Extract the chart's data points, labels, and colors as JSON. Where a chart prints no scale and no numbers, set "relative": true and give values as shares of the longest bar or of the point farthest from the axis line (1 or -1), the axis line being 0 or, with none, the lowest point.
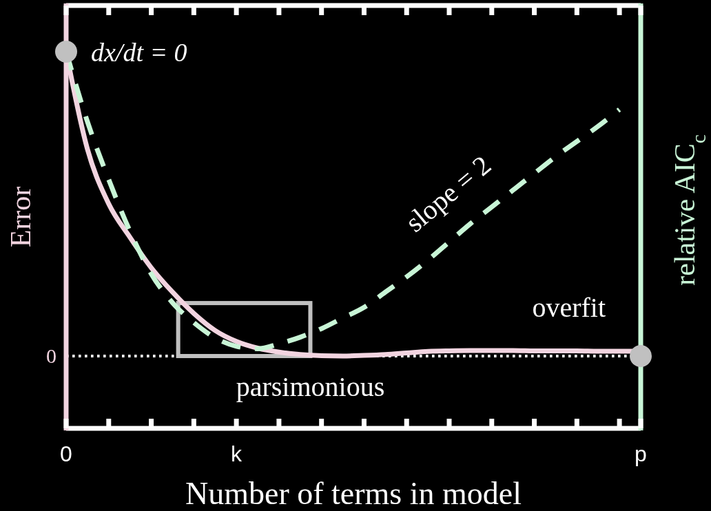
{
  "chart_data": {
    "type": "line",
    "relative": true,
    "xlabel": "Number of terms in model",
    "ylabel": "Error",
    "y2label": "relative AIC$_{c}$",
    "categories": [
      "0",
      null,
      null,
      null,
      null,
      null,
      null,
      null,
      "k",
      null,
      null,
      null,
      null,
      null,
      null,
      null,
      null,
      null,
      null,
      null,
      null,
      null,
      null,
      null,
      null,
      null,
      null,
      "p"
    ],
    "series": [
      {
        "color": "#f2d4e0",
        "line_style": "solid",
        "values": [
          1,
          0.68,
          0.5,
          0.39,
          0.29,
          0.21,
          0.14,
          0.084,
          0.048,
          0.026,
          0.013,
          0.005,
          0.001,
          0,
          0.002,
          0.005,
          0.01,
          0.015,
          0.017,
          0.018,
          0.018,
          0.018,
          0.017,
          0.017,
          0.017,
          0.016,
          0.016,
          0.016
        ]
      },
      {
        "color": "#c8f5d6",
        "line_style": "dashed",
        "axis": "y2",
        "values": [
          1,
          0.77,
          0.58,
          0.41,
          0.27,
          0.175,
          0.11,
          0.06,
          0.032,
          0.024,
          0.04,
          0.062,
          0.09,
          0.125,
          0.16,
          0.21,
          0.26,
          0.315,
          0.375,
          0.435,
          0.49,
          0.545,
          0.6,
          0.655,
          0.705,
          0.755,
          0.81,
          null
        ]
      },
      {
        "type": "scatter",
        "color": "#c0c0c0",
        "marker": "circle",
        "values": [
          1,
          null,
          null,
          null,
          null,
          null,
          null,
          null,
          null,
          null,
          null,
          null,
          null,
          null,
          null,
          null,
          null,
          null,
          null,
          null,
          null,
          null,
          null,
          null,
          null,
          null,
          null,
          0
        ]
      }
    ],
    "ref_lines": [
      {
        "axis": "y",
        "value": 0,
        "label": "0",
        "color": "#ffffff",
        "line_style": "dotted"
      }
    ],
    "annotations": [
      "dx/dt = 0",
      "slope = 2",
      "overfit",
      "parsimonious"
    ]
  }
}
